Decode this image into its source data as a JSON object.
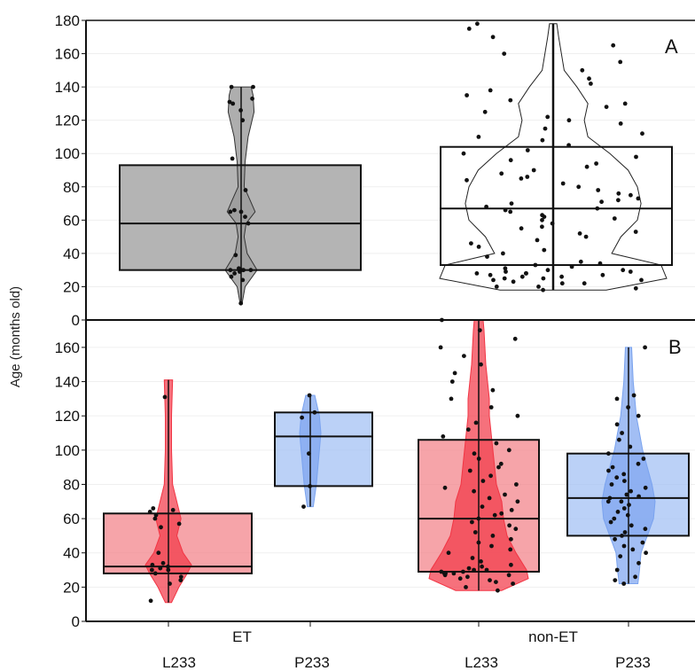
{
  "chart_data": {
    "type": "box",
    "ylabel": "Age (months old)",
    "group_labels": [
      "ET",
      "non-ET"
    ],
    "category_labels": [
      "L233",
      "P233",
      "L233",
      "P233"
    ],
    "panels": [
      {
        "letter": "A",
        "ylim": [
          0,
          180
        ],
        "yticks": [
          0,
          20,
          40,
          60,
          80,
          100,
          120,
          140,
          160,
          180
        ],
        "series": [
          {
            "group": "ET",
            "colors": {
              "fill": "#b4b4b4",
              "stroke": "#111111"
            },
            "min": 10,
            "q1": 30,
            "median": 58,
            "q3": 93,
            "max": 140,
            "violin": [
              [
                10,
                1
              ],
              [
                20,
                4
              ],
              [
                30,
                16
              ],
              [
                40,
                6
              ],
              [
                50,
                3
              ],
              [
                58,
                5
              ],
              [
                65,
                14
              ],
              [
                72,
                9
              ],
              [
                80,
                3
              ],
              [
                95,
                4
              ],
              [
                110,
                7
              ],
              [
                125,
                13
              ],
              [
                135,
                12
              ],
              [
                140,
                10
              ]
            ],
            "points": [
              10,
              24,
              26,
              28,
              29,
              30,
              30,
              30,
              30,
              31,
              39,
              58,
              62,
              65,
              65,
              66,
              78,
              97,
              120,
              126,
              130,
              131,
              133,
              140,
              140
            ]
          },
          {
            "group": "non-ET",
            "colors": {
              "fill": "#ffffff",
              "stroke": "#111111"
            },
            "min": 18,
            "q1": 33,
            "median": 67,
            "q3": 104,
            "max": 178,
            "violin": [
              [
                18,
                58
              ],
              [
                25,
                124
              ],
              [
                33,
                118
              ],
              [
                40,
                64
              ],
              [
                50,
                74
              ],
              [
                60,
                92
              ],
              [
                70,
                96
              ],
              [
                80,
                92
              ],
              [
                90,
                82
              ],
              [
                100,
                62
              ],
              [
                110,
                38
              ],
              [
                120,
                34
              ],
              [
                130,
                38
              ],
              [
                140,
                26
              ],
              [
                150,
                12
              ],
              [
                160,
                9
              ],
              [
                170,
                6
              ],
              [
                178,
                4
              ]
            ],
            "points": [
              18,
              19,
              20,
              20,
              22,
              22,
              23,
              24,
              24,
              25,
              25,
              26,
              26,
              27,
              27,
              28,
              28,
              28,
              29,
              29,
              30,
              30,
              31,
              32,
              33,
              34,
              35,
              38,
              40,
              42,
              44,
              46,
              48,
              50,
              52,
              53,
              55,
              56,
              58,
              60,
              61,
              62,
              63,
              65,
              66,
              67,
              68,
              70,
              71,
              72,
              73,
              75,
              76,
              78,
              80,
              82,
              84,
              85,
              86,
              88,
              90,
              92,
              94,
              96,
              98,
              100,
              102,
              105,
              108,
              110,
              112,
              115,
              118,
              120,
              122,
              125,
              128,
              130,
              132,
              135,
              138,
              142,
              145,
              150,
              155,
              160,
              165,
              170,
              175,
              178
            ]
          }
        ]
      },
      {
        "letter": "B",
        "ylim": [
          0,
          176
        ],
        "yticks": [
          0,
          20,
          40,
          60,
          80,
          100,
          120,
          140,
          160
        ],
        "series": [
          {
            "group": "ET",
            "label": "L233",
            "colors": {
              "fill": "#f3868c",
              "violin": "#f23544",
              "stroke": "#111111"
            },
            "min": 11,
            "q1": 28,
            "median": 32,
            "q3": 63,
            "max": 141,
            "violin": [
              [
                11,
                3
              ],
              [
                20,
                10
              ],
              [
                28,
                18
              ],
              [
                33,
                22
              ],
              [
                40,
                14
              ],
              [
                50,
                8
              ],
              [
                60,
                12
              ],
              [
                65,
                10
              ],
              [
                80,
                4
              ],
              [
                100,
                3
              ],
              [
                120,
                3
              ],
              [
                141,
                4
              ]
            ],
            "points": [
              12,
              22,
              24,
              26,
              28,
              30,
              30,
              31,
              32,
              33,
              34,
              40,
              55,
              57,
              60,
              62,
              64,
              65,
              66,
              131
            ]
          },
          {
            "group": "ET",
            "label": "P233",
            "colors": {
              "fill": "#a4c2f4",
              "violin": "#7aa3ef",
              "stroke": "#111111"
            },
            "min": 67,
            "q1": 79,
            "median": 108,
            "q3": 122,
            "max": 132,
            "violin": [
              [
                67,
                2
              ],
              [
                80,
                4
              ],
              [
                100,
                6
              ],
              [
                110,
                7
              ],
              [
                120,
                6
              ],
              [
                132,
                3
              ]
            ],
            "points": [
              67,
              79,
              98,
              119,
              122,
              132
            ]
          },
          {
            "group": "non-ET",
            "label": "L233",
            "colors": {
              "fill": "#f3868c",
              "violin": "#f23544",
              "stroke": "#111111"
            },
            "min": 18,
            "q1": 29,
            "median": 60,
            "q3": 106,
            "max": 176,
            "violin": [
              [
                18,
                26
              ],
              [
                25,
                56
              ],
              [
                30,
                54
              ],
              [
                40,
                42
              ],
              [
                50,
                32
              ],
              [
                60,
                28
              ],
              [
                70,
                26
              ],
              [
                80,
                20
              ],
              [
                90,
                18
              ],
              [
                100,
                16
              ],
              [
                110,
                14
              ],
              [
                120,
                12
              ],
              [
                130,
                12
              ],
              [
                140,
                10
              ],
              [
                150,
                8
              ],
              [
                160,
                7
              ],
              [
                170,
                6
              ],
              [
                176,
                5
              ]
            ],
            "points": [
              18,
              20,
              22,
              23,
              24,
              25,
              26,
              27,
              27,
              28,
              28,
              28,
              29,
              29,
              30,
              30,
              31,
              32,
              33,
              35,
              37,
              40,
              42,
              44,
              46,
              48,
              50,
              52,
              54,
              56,
              58,
              60,
              62,
              63,
              65,
              67,
              70,
              72,
              74,
              76,
              78,
              80,
              82,
              85,
              88,
              90,
              92,
              95,
              98,
              100,
              104,
              108,
              112,
              116,
              120,
              125,
              130,
              135,
              140,
              145,
              150,
              155,
              160,
              165,
              170,
              176
            ]
          },
          {
            "group": "non-ET",
            "label": "P233",
            "colors": {
              "fill": "#a4c2f4",
              "violin": "#7aa3ef",
              "stroke": "#111111"
            },
            "min": 22,
            "q1": 50,
            "median": 72,
            "q3": 98,
            "max": 160,
            "violin": [
              [
                22,
                12
              ],
              [
                30,
                14
              ],
              [
                40,
                16
              ],
              [
                50,
                24
              ],
              [
                60,
                32
              ],
              [
                70,
                34
              ],
              [
                80,
                30
              ],
              [
                90,
                24
              ],
              [
                100,
                18
              ],
              [
                110,
                14
              ],
              [
                120,
                10
              ],
              [
                130,
                8
              ],
              [
                140,
                6
              ],
              [
                150,
                5
              ],
              [
                160,
                4
              ]
            ],
            "points": [
              22,
              24,
              26,
              30,
              34,
              38,
              40,
              42,
              44,
              46,
              48,
              50,
              52,
              54,
              56,
              58,
              60,
              62,
              64,
              66,
              68,
              70,
              70,
              72,
              73,
              74,
              76,
              78,
              80,
              82,
              84,
              86,
              88,
              90,
              92,
              95,
              98,
              102,
              106,
              110,
              115,
              120,
              125,
              130,
              132,
              160
            ]
          }
        ]
      }
    ]
  }
}
